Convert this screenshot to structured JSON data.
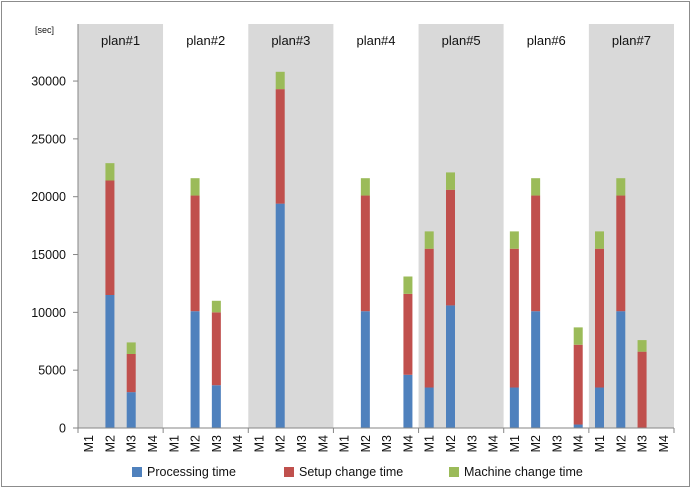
{
  "chart_data": {
    "type": "bar",
    "stacked": true,
    "unit_label": "[sec]",
    "ylim": [
      0,
      32000
    ],
    "y_ticks": [
      "0",
      "5000",
      "10000",
      "15000",
      "20000",
      "25000",
      "30000"
    ],
    "machines": [
      "M1",
      "M2",
      "M3",
      "M4"
    ],
    "groups": [
      "plan#1",
      "plan#2",
      "plan#3",
      "plan#4",
      "plan#5",
      "plan#6",
      "plan#7"
    ],
    "group_band_colors": [
      "#d9d9d9",
      "#ffffff",
      "#d9d9d9",
      "#ffffff",
      "#d9d9d9",
      "#ffffff",
      "#d9d9d9"
    ],
    "grid": false,
    "legend_position": "bottom",
    "series": [
      {
        "name": "Processing time",
        "color": "#4f81bd",
        "values": [
          [
            0,
            11500,
            3100,
            0
          ],
          [
            0,
            10100,
            3700,
            0
          ],
          [
            0,
            19400,
            0,
            0
          ],
          [
            0,
            10100,
            0,
            4600
          ],
          [
            3500,
            10600,
            0,
            0
          ],
          [
            3500,
            10100,
            0,
            300
          ],
          [
            3500,
            10100,
            0,
            0
          ]
        ]
      },
      {
        "name": "Setup change time",
        "color": "#c0504d",
        "values": [
          [
            0,
            9900,
            3300,
            0
          ],
          [
            0,
            10000,
            6300,
            0
          ],
          [
            0,
            9900,
            0,
            0
          ],
          [
            0,
            10000,
            0,
            7000
          ],
          [
            12000,
            10000,
            0,
            0
          ],
          [
            12000,
            10000,
            0,
            6900
          ],
          [
            12000,
            10000,
            6600,
            0
          ]
        ]
      },
      {
        "name": "Machine change time",
        "color": "#9bbb59",
        "values": [
          [
            0,
            1500,
            1000,
            0
          ],
          [
            0,
            1500,
            1000,
            0
          ],
          [
            0,
            1500,
            0,
            0
          ],
          [
            0,
            1500,
            0,
            1500
          ],
          [
            1500,
            1500,
            0,
            0
          ],
          [
            1500,
            1500,
            0,
            1500
          ],
          [
            1500,
            1500,
            1000,
            0
          ]
        ]
      }
    ]
  }
}
